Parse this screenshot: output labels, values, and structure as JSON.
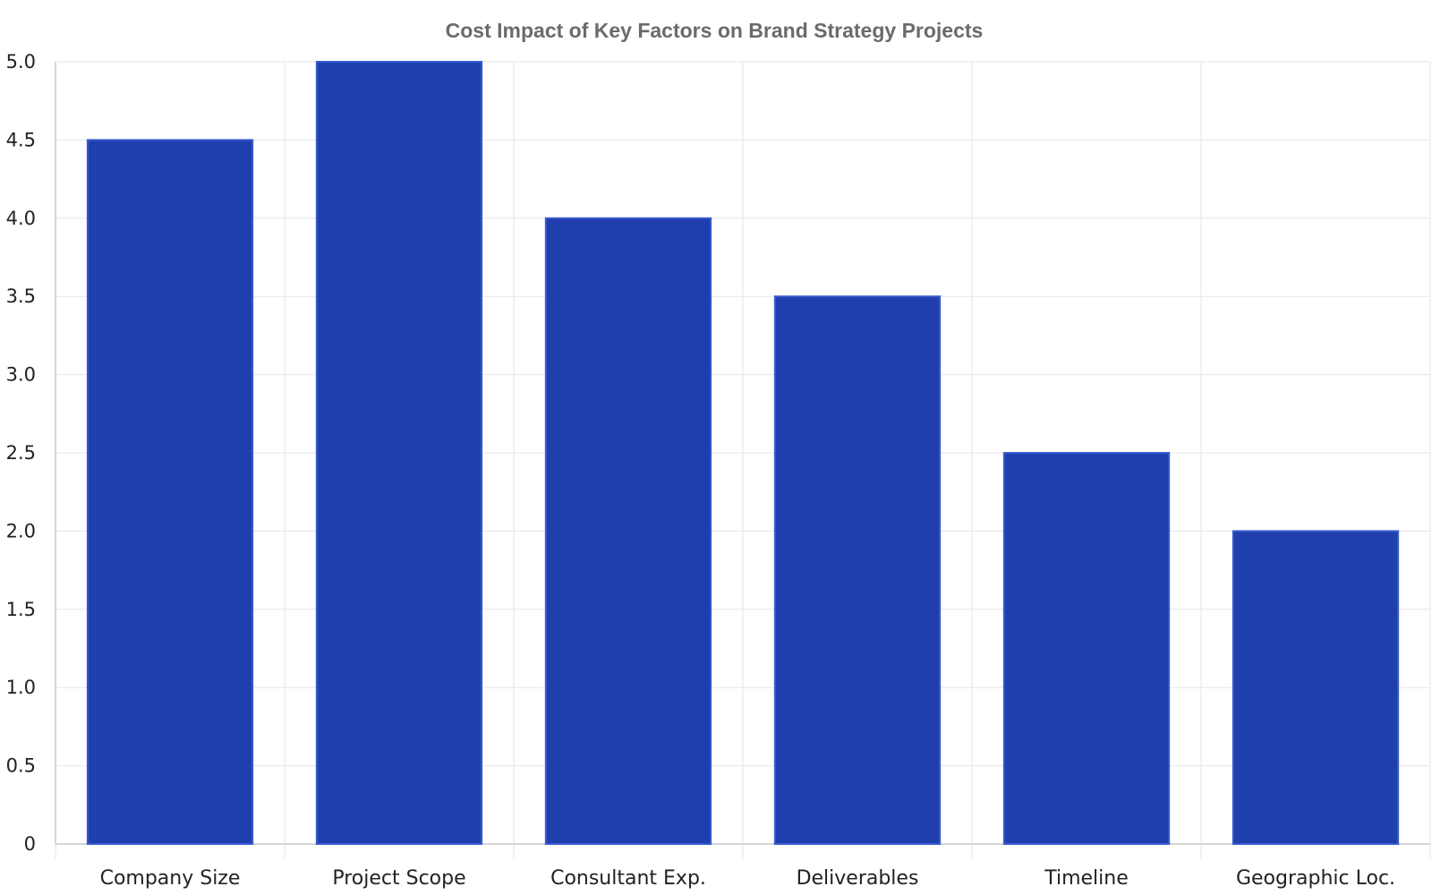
{
  "chart_data": {
    "type": "bar",
    "title": "Cost Impact of Key Factors on Brand Strategy Projects",
    "xlabel": "",
    "ylabel": "",
    "categories": [
      "Company Size",
      "Project Scope",
      "Consultant Exp.",
      "Deliverables",
      "Timeline",
      "Geographic Loc."
    ],
    "values": [
      4.5,
      5.0,
      4.0,
      3.5,
      2.5,
      2.0
    ],
    "ylim": [
      0,
      5
    ],
    "yticks": [
      "0",
      "0.5",
      "1.0",
      "1.5",
      "2.0",
      "2.5",
      "3.0",
      "3.5",
      "4.0",
      "4.5",
      "5.0"
    ],
    "grid": true,
    "legend": "none",
    "colors": {
      "bar": "#1f3fad",
      "bar_edge": "#3a5bd0",
      "grid": "#e6e6e6",
      "title": "#6b6b6b"
    }
  }
}
